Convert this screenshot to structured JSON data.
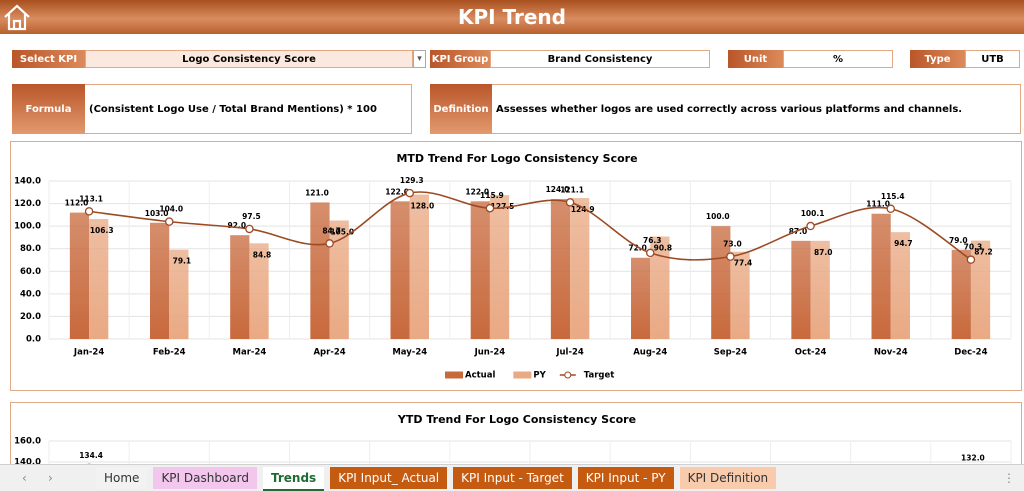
{
  "header": {
    "title": "KPI Trend"
  },
  "fields": [
    {
      "label": "Select KPI",
      "value": "Logo Consistency Score"
    },
    {
      "label": "KPI Group",
      "value": "Brand Consistency"
    },
    {
      "label": "Unit",
      "value": "%"
    },
    {
      "label": "Type",
      "value": "UTB"
    }
  ],
  "notes": [
    {
      "label": "Formula",
      "value": "(Consistent Logo Use / Total Brand Mentions) * 100"
    },
    {
      "label": "Definition",
      "value": "Assesses whether logos are used correctly across various platforms and channels."
    }
  ],
  "chart_data": [
    {
      "type": "bar",
      "title": "MTD Trend For Logo Consistency Score",
      "categories": [
        "Jan-24",
        "Feb-24",
        "Mar-24",
        "Apr-24",
        "May-24",
        "Jun-24",
        "Jul-24",
        "Aug-24",
        "Sep-24",
        "Oct-24",
        "Nov-24",
        "Dec-24"
      ],
      "series": [
        {
          "name": "Actual",
          "type": "bar",
          "color": "#c8693c",
          "values": [
            112,
            103,
            92,
            121,
            122,
            122,
            124,
            72,
            100,
            87,
            111,
            79
          ],
          "value_labels": [
            "112.0",
            "103.0",
            "92.0",
            "121.0",
            "122.0",
            "122.0",
            "124.0",
            "72.0",
            "100.0",
            "87.0",
            "111.0",
            "79.0"
          ]
        },
        {
          "name": "PY",
          "type": "bar",
          "color": "#e9a983",
          "values": [
            106.3,
            79.1,
            84.8,
            105,
            128,
            127.5,
            124.9,
            90.8,
            77.4,
            87,
            94.7,
            87.2
          ],
          "value_labels": [
            "106.3",
            "79.1",
            "84.8",
            "105.0",
            "128.0",
            "127.5",
            "124.9",
            "90.8",
            "77.4",
            "87.0",
            "94.7",
            "87.2"
          ]
        },
        {
          "name": "Target",
          "type": "line",
          "color": "#9c4a24",
          "values": [
            113.1,
            104,
            97.5,
            84.7,
            129.3,
            115.9,
            121.1,
            76.3,
            73,
            100.1,
            115.4,
            70.3
          ],
          "value_labels": [
            "113.1",
            "104.0",
            "97.5",
            "84.7",
            "129.3",
            "115.9",
            "121.1",
            "76.3",
            "73.0",
            "100.1",
            "115.4",
            "70.3"
          ]
        }
      ],
      "ylim": [
        0,
        140
      ],
      "yticks": [
        {
          "value": 0,
          "label": "0.0"
        },
        {
          "value": 20,
          "label": "20.0"
        },
        {
          "value": 40,
          "label": "40.0"
        },
        {
          "value": 60,
          "label": "60.0"
        },
        {
          "value": 80,
          "label": "80.0"
        },
        {
          "value": 100,
          "label": "100.0"
        },
        {
          "value": 120,
          "label": "120.0"
        },
        {
          "value": 140,
          "label": "140.0"
        }
      ],
      "grid": true,
      "legend": "bottom"
    },
    {
      "type": "line",
      "title": "YTD Trend For Logo Consistency Score",
      "series": [
        {
          "type": "line",
          "color": "#9c4a24",
          "values": [
            134.4,
            null,
            null,
            null,
            null,
            null,
            null,
            null,
            null,
            null,
            null,
            132
          ],
          "value_labels": [
            "134.4",
            null,
            null,
            null,
            null,
            null,
            null,
            null,
            null,
            null,
            null,
            "132.0"
          ]
        }
      ],
      "ylim": [
        0,
        160
      ],
      "yticks": [
        {
          "value": 140,
          "label": "140.0"
        },
        {
          "value": 160,
          "label": "160.0"
        }
      ],
      "grid": true
    }
  ],
  "tabs": [
    {
      "label": "Home",
      "color": "#f2f2f2"
    },
    {
      "label": "KPI Dashboard",
      "color": "#f3c6ee"
    },
    {
      "label": "Trends",
      "color": "#ffffff"
    },
    {
      "label": "KPI Input_ Actual",
      "color": "#c55a11"
    },
    {
      "label": "KPI Input - Target",
      "color": "#c55a11"
    },
    {
      "label": "KPI Input - PY",
      "color": "#c55a11"
    },
    {
      "label": "KPI Definition",
      "color": "#f8cbad"
    }
  ],
  "active_tab": 2
}
